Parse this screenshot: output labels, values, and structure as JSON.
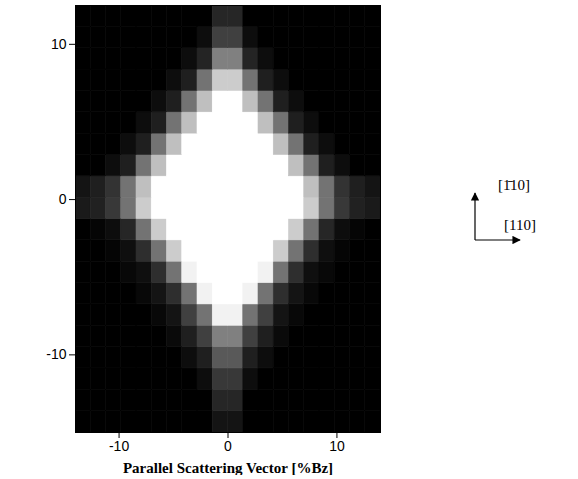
{
  "chart_data": {
    "type": "heatmap",
    "xlabel": "Parallel Scattering Vector [%Bz]",
    "xlim": [
      -14,
      14
    ],
    "ylim": [
      -15,
      12.5
    ],
    "xticks": [
      -10,
      0,
      10
    ],
    "yticks": [
      -10,
      0,
      10
    ],
    "annotations": [
      "[1̄10]",
      "[110]"
    ],
    "x_bins": [
      -14,
      -12.6,
      -11.2,
      -9.8,
      -8.4,
      -7,
      -5.6,
      -4.2,
      -2.8,
      -1.4,
      0,
      1.4,
      2.8,
      4.2,
      5.6,
      7,
      8.4,
      9.8,
      11.2,
      12.6,
      14
    ],
    "y_bins": [
      -15,
      -13.625,
      -12.25,
      -10.875,
      -9.5,
      -8.125,
      -6.75,
      -5.375,
      -4,
      -2.625,
      -1.25,
      0.125,
      1.5,
      2.875,
      4.25,
      5.625,
      7,
      8.375,
      9.75,
      11.125,
      12.5
    ],
    "cells": [
      [
        0,
        0,
        0,
        0,
        0,
        0,
        0,
        0,
        0,
        8,
        8,
        0,
        0,
        0,
        0,
        0,
        0,
        0,
        0,
        0
      ],
      [
        0,
        0,
        0,
        0,
        0,
        0,
        0,
        0,
        0,
        15,
        15,
        0,
        0,
        0,
        0,
        0,
        0,
        0,
        0,
        0
      ],
      [
        0,
        0,
        0,
        0,
        0,
        0,
        0,
        0,
        5,
        22,
        22,
        5,
        0,
        0,
        0,
        0,
        0,
        0,
        0,
        0
      ],
      [
        0,
        0,
        0,
        0,
        0,
        0,
        0,
        5,
        12,
        35,
        35,
        12,
        5,
        0,
        0,
        0,
        0,
        0,
        0,
        0
      ],
      [
        0,
        0,
        0,
        0,
        0,
        0,
        4,
        12,
        25,
        50,
        50,
        25,
        12,
        4,
        0,
        0,
        0,
        0,
        0,
        0
      ],
      [
        0,
        0,
        0,
        0,
        0,
        3,
        8,
        25,
        45,
        95,
        95,
        45,
        25,
        8,
        3,
        0,
        0,
        0,
        0,
        0
      ],
      [
        0,
        0,
        0,
        0,
        3,
        8,
        18,
        45,
        95,
        100,
        100,
        95,
        45,
        18,
        8,
        3,
        0,
        0,
        0,
        0
      ],
      [
        0,
        0,
        0,
        3,
        6,
        18,
        45,
        95,
        100,
        100,
        100,
        100,
        95,
        45,
        18,
        6,
        3,
        0,
        0,
        0
      ],
      [
        0,
        0,
        2,
        6,
        18,
        45,
        80,
        100,
        100,
        100,
        100,
        100,
        100,
        80,
        45,
        18,
        6,
        2,
        0,
        0
      ],
      [
        0,
        2,
        5,
        15,
        45,
        80,
        100,
        100,
        100,
        100,
        100,
        100,
        100,
        100,
        80,
        45,
        15,
        5,
        2,
        0
      ],
      [
        10,
        13,
        22,
        45,
        80,
        100,
        100,
        100,
        100,
        100,
        100,
        100,
        100,
        100,
        100,
        80,
        45,
        22,
        13,
        10
      ],
      [
        8,
        12,
        20,
        45,
        75,
        100,
        100,
        100,
        100,
        100,
        100,
        100,
        100,
        100,
        100,
        75,
        45,
        20,
        12,
        8
      ],
      [
        0,
        0,
        5,
        12,
        45,
        75,
        100,
        100,
        100,
        100,
        100,
        100,
        100,
        100,
        75,
        45,
        12,
        5,
        0,
        0
      ],
      [
        0,
        0,
        0,
        5,
        12,
        45,
        75,
        100,
        100,
        100,
        100,
        100,
        100,
        75,
        45,
        12,
        5,
        0,
        0,
        0
      ],
      [
        0,
        0,
        0,
        0,
        5,
        12,
        45,
        75,
        100,
        100,
        100,
        100,
        75,
        45,
        12,
        5,
        0,
        0,
        0,
        0
      ],
      [
        0,
        0,
        0,
        0,
        0,
        5,
        12,
        45,
        75,
        100,
        100,
        75,
        45,
        12,
        5,
        0,
        0,
        0,
        0,
        0
      ],
      [
        0,
        0,
        0,
        0,
        0,
        0,
        5,
        12,
        45,
        80,
        80,
        45,
        12,
        5,
        0,
        0,
        0,
        0,
        0,
        0
      ],
      [
        0,
        0,
        0,
        0,
        0,
        0,
        0,
        5,
        14,
        50,
        50,
        14,
        5,
        0,
        0,
        0,
        0,
        0,
        0,
        0
      ],
      [
        0,
        0,
        0,
        0,
        0,
        0,
        0,
        0,
        5,
        25,
        25,
        5,
        0,
        0,
        0,
        0,
        0,
        0,
        0,
        0
      ],
      [
        0,
        0,
        0,
        0,
        0,
        0,
        0,
        0,
        0,
        15,
        15,
        0,
        0,
        0,
        0,
        0,
        0,
        0,
        0,
        0
      ]
    ]
  }
}
